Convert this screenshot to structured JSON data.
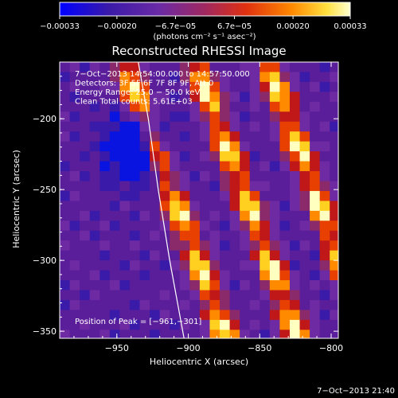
{
  "chart_data": {
    "type": "heatmap",
    "title": "Reconstructed RHESSI Image",
    "xlabel": "Heliocentric X (arcsec)",
    "ylabel": "Heliocentric Y (arcsec)",
    "xlim": [
      -990,
      -795
    ],
    "ylim": [
      -355,
      -160
    ],
    "x_ticks": [
      -950,
      -900,
      -850,
      -800
    ],
    "x_tick_labels": [
      "−950",
      "−900",
      "−850",
      "−800"
    ],
    "y_ticks": [
      -200,
      -250,
      -300,
      -350
    ],
    "y_tick_labels": [
      "−200",
      "−250",
      "−300",
      "−350"
    ],
    "colorbar": {
      "range": [
        -0.00033,
        0.00033
      ],
      "ticks": [
        -0.00033,
        -0.0002,
        -6.7e-05,
        6.7e-05,
        0.0002,
        0.00033
      ],
      "tick_labels": [
        "−0.00033",
        "−0.00020",
        "−6.7e−05",
        "6.7e−05",
        "0.00020",
        "0.00033"
      ],
      "unit_text": "(photons cm⁻² s⁻¹ asec⁻²)",
      "colors": [
        "#0000ff",
        "#5a1a9a",
        "#7a2ea0",
        "#c02020",
        "#ff6000",
        "#ffd000",
        "#ffffd0"
      ]
    },
    "annotations": [
      "7−Oct−2013 14:54:00.000 to 14:57:50.000",
      "Detectors: 3F 5F 6F 7F 8F 9F, Att 0",
      "Energy Range: 25.0 − 50.0 keV",
      "Clean    Total counts: 5.61E+03"
    ],
    "peak_label": "Position of Peak = [−961,−301]",
    "timestamp": "7−Oct−2013 21:40",
    "limb_curve": [
      [
        -935,
        -160
      ],
      [
        -928,
        -200
      ],
      [
        -921,
        -250
      ],
      [
        -913,
        -300
      ],
      [
        -903,
        -355
      ]
    ],
    "bright_bands": [
      {
        "x_at_top": -945,
        "slope": 1.5
      },
      {
        "x_at_top": -895,
        "slope": 1.5
      },
      {
        "x_at_top": -845,
        "slope": 1.5
      }
    ],
    "negative_region": {
      "x": -935,
      "y": -220
    }
  }
}
